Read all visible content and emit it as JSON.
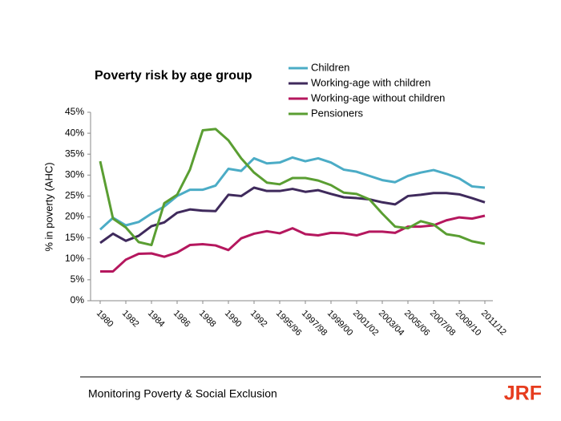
{
  "chart_data": {
    "type": "line",
    "title": "Poverty risk by age group",
    "y_label": "% in poverty (AHC)",
    "categories": [
      "1980",
      null,
      "1982",
      null,
      "1984",
      null,
      "1986",
      null,
      "1988",
      null,
      "1990",
      null,
      "1992",
      null,
      "1995/96",
      null,
      "1997/98",
      null,
      "1999/00",
      null,
      "2001/02",
      null,
      "2003/04",
      null,
      "2005/06",
      null,
      "2007/08",
      null,
      "2009/10",
      null,
      "2011/12"
    ],
    "series": [
      {
        "name": "Children",
        "color": "#4bacc6",
        "values": [
          17,
          19.8,
          18,
          18.8,
          20.8,
          22.5,
          25,
          26.5,
          26.5,
          27.5,
          31.5,
          31,
          34,
          32.8,
          33,
          34.2,
          33.3,
          34,
          33,
          31.3,
          30.8,
          29.8,
          28.8,
          28.3,
          29.8,
          30.6,
          31.2,
          30.3,
          29.2,
          27.3,
          27
        ]
      },
      {
        "name": "Working-age with children",
        "color": "#3f2a5c",
        "values": [
          13.8,
          16,
          14.3,
          15.5,
          17.8,
          18.7,
          21,
          21.8,
          21.5,
          21.4,
          25.3,
          25,
          27,
          26.2,
          26.2,
          26.7,
          26,
          26.4,
          25.5,
          24.7,
          24.5,
          24.2,
          23.5,
          23,
          25,
          25.3,
          25.7,
          25.7,
          25.4,
          24.5,
          23.5
        ]
      },
      {
        "name": "Working-age without children",
        "color": "#b5175e",
        "values": [
          7,
          7,
          9.8,
          11.2,
          11.3,
          10.5,
          11.5,
          13.3,
          13.5,
          13.2,
          12.1,
          14.9,
          16,
          16.6,
          16.1,
          17.3,
          15.9,
          15.6,
          16.2,
          16.1,
          15.6,
          16.5,
          16.5,
          16.2,
          17.7,
          17.7,
          18,
          19.2,
          19.9,
          19.6,
          20.3
        ]
      },
      {
        "name": "Pensioners",
        "color": "#5a9e32",
        "values": [
          33.3,
          19.6,
          17.5,
          14,
          13.3,
          23.3,
          25.3,
          31.3,
          40.7,
          41,
          38.3,
          34,
          30.6,
          28.2,
          27.8,
          29.3,
          29.3,
          28.7,
          27.6,
          25.8,
          25.5,
          24.2,
          20.8,
          17.7,
          17.3,
          19,
          18.2,
          15.9,
          15.4,
          14.2,
          13.6
        ]
      }
    ],
    "ylim": [
      0,
      45
    ],
    "yticks": [
      {
        "value": 0,
        "label": "0%"
      },
      {
        "value": 5,
        "label": "5%"
      },
      {
        "value": 10,
        "label": "10%"
      },
      {
        "value": 15,
        "label": "15%"
      },
      {
        "value": 20,
        "label": "20%"
      },
      {
        "value": 25,
        "label": "25%"
      },
      {
        "value": 30,
        "label": "30%"
      },
      {
        "value": 35,
        "label": "35%"
      },
      {
        "value": 40,
        "label": "40%"
      },
      {
        "value": 45,
        "label": "45%"
      }
    ]
  },
  "footer": {
    "text": "Monitoring Poverty & Social Exclusion",
    "logo": "JRF"
  }
}
